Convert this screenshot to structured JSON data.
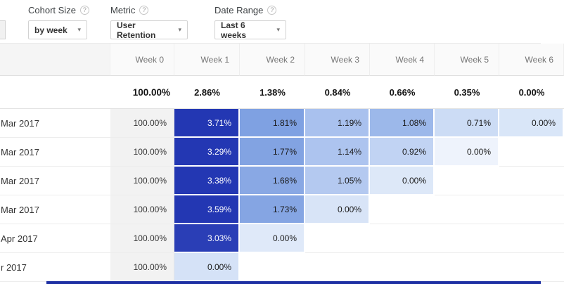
{
  "toolbar": {
    "cohort_size": {
      "label": "Cohort Size",
      "value": "by week"
    },
    "metric": {
      "label": "Metric",
      "value": "User Retention"
    },
    "date_range": {
      "label": "Date Range",
      "value": "Last 6 weeks"
    }
  },
  "icons": {
    "help": "?",
    "caret": "▾"
  },
  "table": {
    "corner_label": "",
    "week_headers": [
      "Week 0",
      "Week 1",
      "Week 2",
      "Week 3",
      "Week 4",
      "Week 5",
      "Week 6"
    ],
    "summary_values": [
      "100.00%",
      "2.86%",
      "1.38%",
      "0.84%",
      "0.66%",
      "0.35%",
      "0.00%"
    ],
    "rows": [
      {
        "label": "Mar 2017",
        "cells": [
          {
            "text": "100.00%"
          },
          {
            "text": "3.71%",
            "bg": "#2337b3",
            "fg": "#ffffff"
          },
          {
            "text": "1.81%",
            "bg": "#7fa1e2",
            "fg": "#1a1a1a"
          },
          {
            "text": "1.19%",
            "bg": "#a9c1ee",
            "fg": "#1a1a1a"
          },
          {
            "text": "1.08%",
            "bg": "#9cb8ea",
            "fg": "#1a1a1a"
          },
          {
            "text": "0.71%",
            "bg": "#ccdcf5",
            "fg": "#1a1a1a"
          },
          {
            "text": "0.00%",
            "bg": "#d9e6f8",
            "fg": "#1a1a1a"
          }
        ]
      },
      {
        "label": "Mar 2017",
        "cells": [
          {
            "text": "100.00%"
          },
          {
            "text": "3.29%",
            "bg": "#2337b3",
            "fg": "#ffffff"
          },
          {
            "text": "1.77%",
            "bg": "#82a3e2",
            "fg": "#1a1a1a"
          },
          {
            "text": "1.14%",
            "bg": "#adc4ef",
            "fg": "#1a1a1a"
          },
          {
            "text": "0.92%",
            "bg": "#c1d3f3",
            "fg": "#1a1a1a"
          },
          {
            "text": "0.00%",
            "bg": "#eef3fc",
            "fg": "#1a1a1a"
          },
          {
            "text": ""
          }
        ]
      },
      {
        "label": "Mar 2017",
        "cells": [
          {
            "text": "100.00%"
          },
          {
            "text": "3.38%",
            "bg": "#2337b3",
            "fg": "#ffffff"
          },
          {
            "text": "1.68%",
            "bg": "#89a8e4",
            "fg": "#1a1a1a"
          },
          {
            "text": "1.05%",
            "bg": "#b4c9f0",
            "fg": "#1a1a1a"
          },
          {
            "text": "0.00%",
            "bg": "#dde8f8",
            "fg": "#1a1a1a"
          },
          {
            "text": ""
          },
          {
            "text": ""
          }
        ]
      },
      {
        "label": "Mar 2017",
        "cells": [
          {
            "text": "100.00%"
          },
          {
            "text": "3.59%",
            "bg": "#2337b3",
            "fg": "#ffffff"
          },
          {
            "text": "1.73%",
            "bg": "#85a5e3",
            "fg": "#1a1a1a"
          },
          {
            "text": "0.00%",
            "bg": "#d8e4f7",
            "fg": "#1a1a1a"
          },
          {
            "text": ""
          },
          {
            "text": ""
          },
          {
            "text": ""
          }
        ]
      },
      {
        "label": "Apr 2017",
        "cells": [
          {
            "text": "100.00%"
          },
          {
            "text": "3.03%",
            "bg": "#2a3eb6",
            "fg": "#ffffff"
          },
          {
            "text": "0.00%",
            "bg": "#dfe9f9",
            "fg": "#1a1a1a"
          },
          {
            "text": ""
          },
          {
            "text": ""
          },
          {
            "text": ""
          },
          {
            "text": ""
          }
        ]
      },
      {
        "label": "r 2017",
        "cells": [
          {
            "text": "100.00%"
          },
          {
            "text": "0.00%",
            "bg": "#d5e2f7",
            "fg": "#1a1a1a"
          },
          {
            "text": ""
          },
          {
            "text": ""
          },
          {
            "text": ""
          },
          {
            "text": ""
          },
          {
            "text": ""
          }
        ]
      }
    ]
  },
  "colors": {
    "accent_dark_blue": "#2337b3",
    "week0_gray": "#f2f2f2",
    "bottom_bar": "#1d2fa3"
  }
}
